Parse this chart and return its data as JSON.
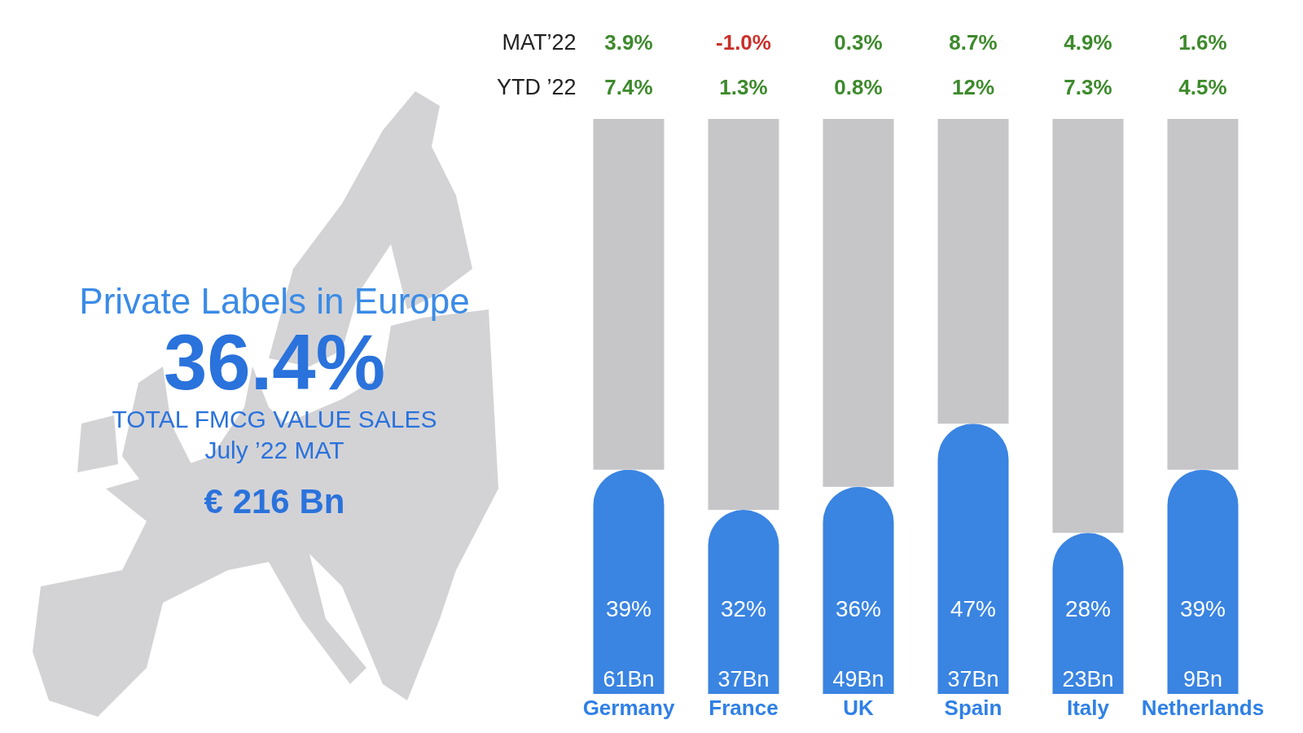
{
  "chart_data": [
    {
      "type": "other",
      "title": "Private Labels in Europe",
      "annotations": [
        "36.4%",
        "TOTAL FMCG VALUE SALES",
        "July ’22 MAT",
        "€ 216 Bn"
      ]
    },
    {
      "type": "bar",
      "categories": [
        "Germany",
        "France",
        "UK",
        "Spain",
        "Italy",
        "Netherlands"
      ],
      "stacked": true,
      "series": [
        {
          "color": "#3a84e2",
          "values": [
            39,
            32,
            36,
            47,
            28,
            39
          ],
          "value_labels": [
            "39%",
            "32%",
            "36%",
            "47%",
            "28%",
            "39%"
          ]
        },
        {
          "color": "#c6c6c9",
          "values": [
            61,
            68,
            64,
            53,
            72,
            61
          ]
        }
      ],
      "annotations": [
        "MAT’22",
        "3.9%",
        "-1.0%",
        "0.3%",
        "8.7%",
        "4.9%",
        "1.6%",
        "YTD ’22",
        "7.4%",
        "1.3%",
        "0.8%",
        "12%",
        "7.3%",
        "4.5%",
        {
          "text": "61Bn",
          "x": "Germany",
          "y": 0
        },
        {
          "text": "37Bn",
          "x": "France",
          "y": 0
        },
        {
          "text": "49Bn",
          "x": "UK",
          "y": 0
        },
        {
          "text": "37Bn",
          "x": "Spain",
          "y": 0
        },
        {
          "text": "23Bn",
          "x": "Italy",
          "y": 0
        },
        {
          "text": "9Bn",
          "x": "Netherlands",
          "y": 0
        }
      ]
    }
  ]
}
